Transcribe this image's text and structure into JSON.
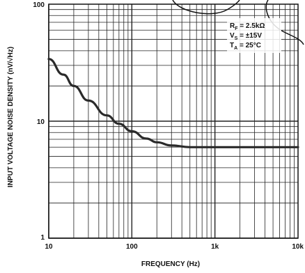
{
  "chart_data": {
    "type": "line",
    "xlabel": "FREQUENCY (Hz)",
    "ylabel": "INPUT VOLTAGE NOISE DENSITY (nV/√Hz)",
    "x_scale": "log",
    "y_scale": "log",
    "xlim": [
      10,
      10000
    ],
    "ylim": [
      1,
      100
    ],
    "grid": true,
    "x_ticks": [
      {
        "value": 10,
        "label": "10"
      },
      {
        "value": 100,
        "label": "100"
      },
      {
        "value": 1000,
        "label": "1k"
      },
      {
        "value": 10000,
        "label": "10k"
      }
    ],
    "y_ticks": [
      {
        "value": 1,
        "label": "1"
      },
      {
        "value": 10,
        "label": "10"
      },
      {
        "value": 100,
        "label": "100"
      }
    ],
    "annotations": [
      {
        "name": "rf",
        "text": "Rf = 2.5kΩ",
        "main": "R",
        "sub": "F",
        "rest": " = 2.5kΩ"
      },
      {
        "name": "vs",
        "text": "Vs = ±15V",
        "main": "V",
        "sub": "S",
        "rest": " = ±15V"
      },
      {
        "name": "ta",
        "text": "TA = 25°C",
        "main": "T",
        "sub": "A",
        "rest": " = 25°C"
      }
    ],
    "series": [
      {
        "x": [
          10,
          15,
          20,
          30,
          50,
          70,
          100,
          150,
          200,
          300,
          500,
          700,
          1000,
          2000,
          5000,
          10000
        ],
        "y": [
          34,
          25,
          20,
          15,
          11.2,
          9.5,
          8.2,
          7.1,
          6.6,
          6.2,
          6.0,
          6.0,
          6.0,
          6.0,
          6.0,
          6.0
        ]
      }
    ]
  }
}
